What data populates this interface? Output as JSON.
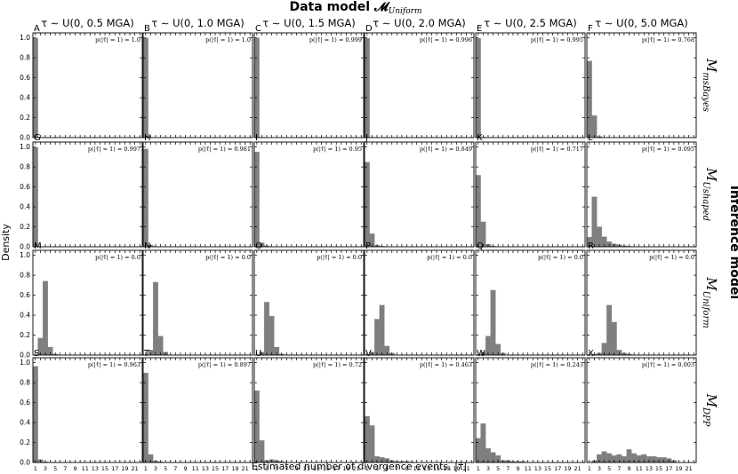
{
  "figure": {
    "title": "Data model 𝓜",
    "title_sub": "Uniform",
    "row_group_label": "Inference model",
    "ylabel": "Density",
    "xlabel": "Estimated number of divergence events, |τ̂|"
  },
  "columns": [
    {
      "label": "τ ∼ U(0, 0.5 MGA)"
    },
    {
      "label": "τ ∼ U(0, 1.0 MGA)"
    },
    {
      "label": "τ ∼ U(0, 1.5 MGA)"
    },
    {
      "label": "τ ∼ U(0, 2.0 MGA)"
    },
    {
      "label": "τ ∼ U(0, 2.5 MGA)"
    },
    {
      "label": "τ ∼ U(0, 5.0 MGA)"
    }
  ],
  "rows": [
    {
      "label_main": "M",
      "label_sub": "msBayes"
    },
    {
      "label_main": "M",
      "label_sub": "Ushaped"
    },
    {
      "label_main": "M",
      "label_sub": "Uniform"
    },
    {
      "label_main": "M",
      "label_sub": "DPP"
    }
  ],
  "axes": {
    "x_ticks": [
      "1",
      "3",
      "5",
      "7",
      "9",
      "11",
      "13",
      "15",
      "17",
      "19",
      "21"
    ],
    "y_ticks": [
      "0.0",
      "0.2",
      "0.4",
      "0.6",
      "0.8",
      "1.0"
    ],
    "ylim": [
      0,
      1.05
    ],
    "xlim": [
      0.5,
      22.5
    ]
  },
  "chart_data": {
    "type": "bar",
    "x": [
      1,
      2,
      3,
      4,
      5,
      6,
      7,
      8,
      9,
      10,
      11,
      12,
      13,
      14,
      15,
      16,
      17,
      18,
      19,
      20,
      21,
      22
    ],
    "panels": [
      {
        "letter": "A",
        "prob_prefix": "p(|τ̂| = 1) = ",
        "prob": "1.0",
        "values": [
          1.0
        ]
      },
      {
        "letter": "B",
        "prob_prefix": "p(|τ̂| = 1) = ",
        "prob": "1.0",
        "values": [
          1.0
        ]
      },
      {
        "letter": "C",
        "prob_prefix": "p(|τ̂| = 1) = ",
        "prob": "0.999",
        "values": [
          0.999,
          0.001
        ]
      },
      {
        "letter": "D",
        "prob_prefix": "p(|τ̂| = 1) = ",
        "prob": "0.996",
        "values": [
          0.996,
          0.004
        ]
      },
      {
        "letter": "E",
        "prob_prefix": "p(|τ̂| = 1) = ",
        "prob": "0.995",
        "values": [
          0.995,
          0.005
        ]
      },
      {
        "letter": "F",
        "prob_prefix": "p(|τ̂| = 1) = ",
        "prob": "0.768",
        "values": [
          0.768,
          0.22,
          0.012
        ]
      },
      {
        "letter": "G",
        "prob_prefix": "p(|τ̂| = 1) = ",
        "prob": "0.997",
        "values": [
          0.997,
          0.003
        ]
      },
      {
        "letter": "H",
        "prob_prefix": "p(|τ̂| = 1) = ",
        "prob": "0.981",
        "values": [
          0.981,
          0.017,
          0.002
        ]
      },
      {
        "letter": "I",
        "prob_prefix": "p(|τ̂| = 1) = ",
        "prob": "0.95",
        "values": [
          0.95,
          0.04,
          0.01
        ]
      },
      {
        "letter": "J",
        "prob_prefix": "p(|τ̂| = 1) = ",
        "prob": "0.849",
        "values": [
          0.849,
          0.13,
          0.015,
          0.006
        ]
      },
      {
        "letter": "K",
        "prob_prefix": "p(|τ̂| = 1) = ",
        "prob": "0.717",
        "values": [
          0.717,
          0.25,
          0.025,
          0.008
        ]
      },
      {
        "letter": "L",
        "prob_prefix": "p(|τ̂| = 1) = ",
        "prob": "0.095",
        "values": [
          0.095,
          0.5,
          0.2,
          0.1,
          0.05,
          0.03,
          0.02,
          0.01,
          0.005
        ]
      },
      {
        "letter": "M",
        "prob_prefix": "p(|τ̂| = 1) = ",
        "prob": "0.0",
        "values": [
          0.0,
          0.17,
          0.74,
          0.08,
          0.01
        ]
      },
      {
        "letter": "N",
        "prob_prefix": "p(|τ̂| = 1) = ",
        "prob": "0.0",
        "values": [
          0.0,
          0.05,
          0.73,
          0.19,
          0.03
        ]
      },
      {
        "letter": "O",
        "prob_prefix": "p(|τ̂| = 1) = ",
        "prob": "0.0",
        "values": [
          0.0,
          0.03,
          0.53,
          0.39,
          0.08,
          0.01
        ]
      },
      {
        "letter": "P",
        "prob_prefix": "p(|τ̂| = 1) = ",
        "prob": "0.0",
        "values": [
          0.0,
          0.03,
          0.36,
          0.5,
          0.09,
          0.02
        ]
      },
      {
        "letter": "Q",
        "prob_prefix": "p(|τ̂| = 1) = ",
        "prob": "0.0",
        "values": [
          0.0,
          0.03,
          0.19,
          0.65,
          0.11,
          0.02
        ]
      },
      {
        "letter": "R",
        "prob_prefix": "p(|τ̂| = 1) = ",
        "prob": "0.0",
        "values": [
          0.0,
          0.01,
          0.02,
          0.12,
          0.5,
          0.33,
          0.05,
          0.02,
          0.01
        ]
      },
      {
        "letter": "S",
        "prob_prefix": "p(|τ̂| = 1) = ",
        "prob": "0.963",
        "values": [
          0.963,
          0.03,
          0.007
        ]
      },
      {
        "letter": "T",
        "prob_prefix": "p(|τ̂| = 1) = ",
        "prob": "0.897",
        "values": [
          0.897,
          0.08,
          0.015,
          0.008
        ]
      },
      {
        "letter": "U",
        "prob_prefix": "p(|τ̂| = 1) = ",
        "prob": "0.72",
        "values": [
          0.72,
          0.22,
          0.02,
          0.03,
          0.02,
          0.01
        ]
      },
      {
        "letter": "V",
        "prob_prefix": "p(|τ̂| = 1) = ",
        "prob": "0.463",
        "values": [
          0.463,
          0.37,
          0.06,
          0.05,
          0.04,
          0.02,
          0.01,
          0.01,
          0.01,
          0.005
        ]
      },
      {
        "letter": "W",
        "prob_prefix": "p(|τ̂| = 1) = ",
        "prob": "0.243",
        "values": [
          0.243,
          0.39,
          0.14,
          0.1,
          0.07,
          0.02,
          0.02,
          0.01,
          0.01,
          0.01
        ]
      },
      {
        "letter": "X",
        "prob_prefix": "p(|τ̂| = 1) = ",
        "prob": "0.003",
        "values": [
          0.003,
          0.02,
          0.08,
          0.11,
          0.09,
          0.07,
          0.08,
          0.06,
          0.13,
          0.09,
          0.07,
          0.08,
          0.06,
          0.06,
          0.05,
          0.05,
          0.04,
          0.02
        ]
      }
    ]
  }
}
